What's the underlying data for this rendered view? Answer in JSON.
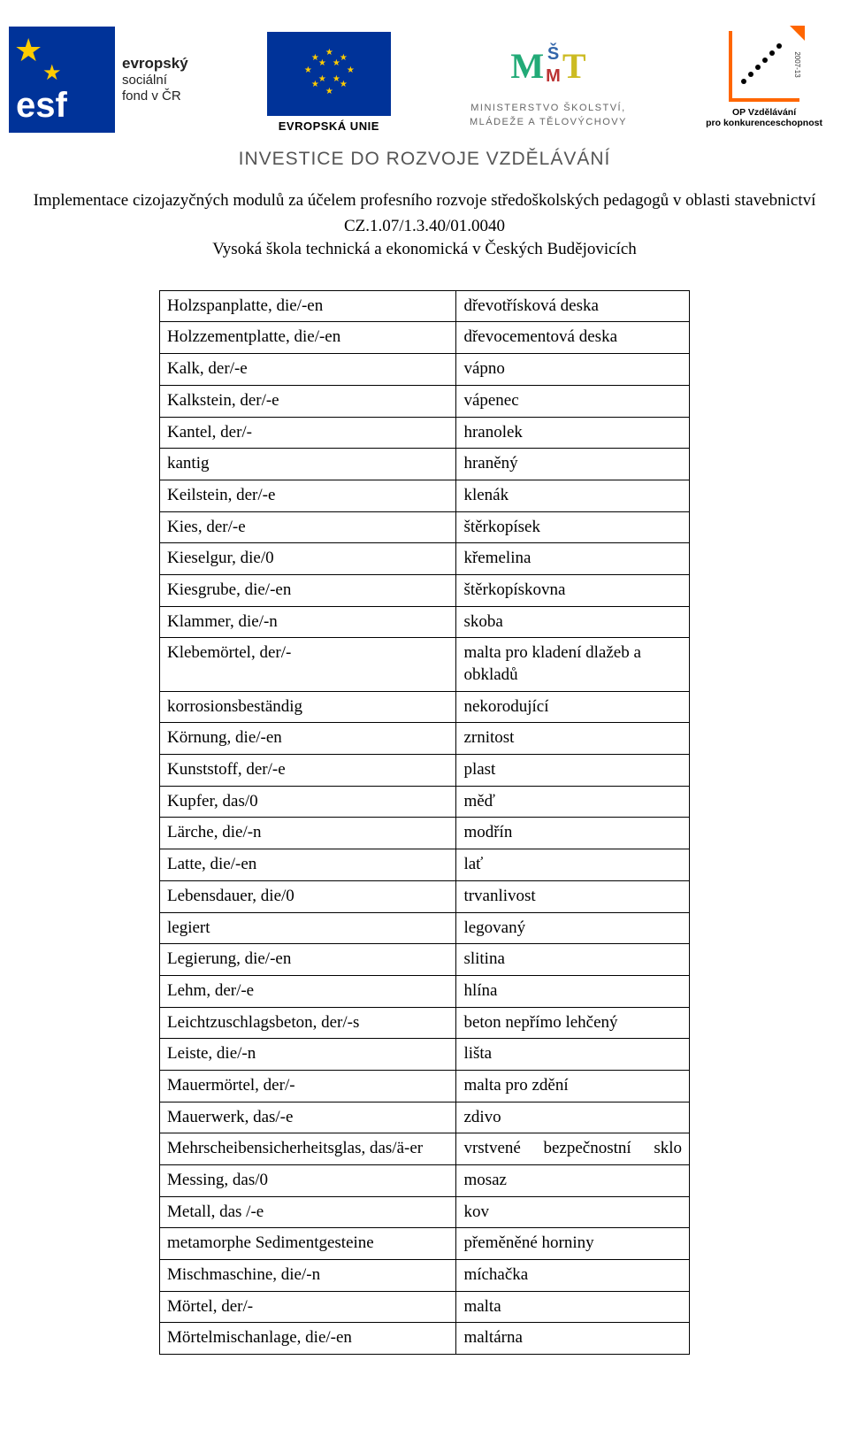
{
  "header": {
    "esf_side_strong": "evropský",
    "esf_side_l2": "sociální",
    "esf_side_l3": "fond v ČR",
    "esf_inside": "esf",
    "eu_label": "EVROPSKÁ UNIE",
    "msmt_l1": "MINISTERSTVO ŠKOLSTVÍ,",
    "msmt_l2": "MLÁDEŽE A TĚLOVÝCHOVY",
    "op_l1": "OP Vzdělávání",
    "op_l2": "pro konkurenceschopnost",
    "op_side": "2007-13",
    "tagline": "INVESTICE DO ROZVOJE VZDĚLÁVÁNÍ",
    "subtitle": "Implementace cizojazyčných modulů za účelem profesního rozvoje středoškolských pedagogů v oblasti stavebnictví",
    "code": "CZ.1.07/1.3.40/01.0040",
    "school": "Vysoká škola technická a ekonomická v Českých Budějovicích"
  },
  "vocab": [
    {
      "de": "Holzspanplatte, die/-en",
      "cs": "dřevotřísková deska"
    },
    {
      "de": "Holzzementplatte, die/-en",
      "cs": "dřevocementová deska"
    },
    {
      "de": "Kalk, der/-e",
      "cs": "vápno"
    },
    {
      "de": "Kalkstein, der/-e",
      "cs": "vápenec"
    },
    {
      "de": "Kantel, der/-",
      "cs": "hranolek"
    },
    {
      "de": "kantig",
      "cs": "hraněný"
    },
    {
      "de": "Keilstein, der/-e",
      "cs": "klenák"
    },
    {
      "de": "Kies, der/-e",
      "cs": "štěrkopísek"
    },
    {
      "de": "Kieselgur, die/0",
      "cs": "křemelina"
    },
    {
      "de": "Kiesgrube, die/-en",
      "cs": "štěrkopískovna"
    },
    {
      "de": "Klammer, die/-n",
      "cs": "skoba"
    },
    {
      "de": "Klebemörtel, der/-",
      "cs": "malta pro kladení dlažeb a obkladů"
    },
    {
      "de": "korrosionsbeständig",
      "cs": "nekorodující"
    },
    {
      "de": "Körnung, die/-en",
      "cs": "zrnitost"
    },
    {
      "de": "Kunststoff, der/-e",
      "cs": "plast"
    },
    {
      "de": "Kupfer, das/0",
      "cs": "měď"
    },
    {
      "de": "Lärche, die/-n",
      "cs": "modřín"
    },
    {
      "de": "Latte, die/-en",
      "cs": "lať"
    },
    {
      "de": "Lebensdauer, die/0",
      "cs": "trvanlivost"
    },
    {
      "de": "legiert",
      "cs": "legovaný"
    },
    {
      "de": "Legierung, die/-en",
      "cs": "slitina"
    },
    {
      "de": "Lehm, der/-e",
      "cs": "hlína"
    },
    {
      "de": "Leichtzuschlagsbeton, der/-s",
      "cs": "beton nepřímo lehčený"
    },
    {
      "de": "Leiste, die/-n",
      "cs": "lišta"
    },
    {
      "de": "Mauermörtel, der/-",
      "cs": "malta pro zdění"
    },
    {
      "de": "Mauerwerk, das/-e",
      "cs": "zdivo"
    },
    {
      "de": "Mehrscheibensicherheitsglas, das/ä-er",
      "cs": "vrstvené bezpečnostní sklo",
      "justify": true
    },
    {
      "de": "Messing, das/0",
      "cs": "mosaz"
    },
    {
      "de": "Metall, das   /-e",
      "cs": "kov"
    },
    {
      "de": "metamorphe Sedimentgesteine",
      "cs": "přeměněné horniny"
    },
    {
      "de": "Mischmaschine, die/-n",
      "cs": "míchačka"
    },
    {
      "de": "Mörtel, der/-",
      "cs": "malta"
    },
    {
      "de": "Mörtelmischanlage, die/-en",
      "cs": "maltárna"
    }
  ]
}
